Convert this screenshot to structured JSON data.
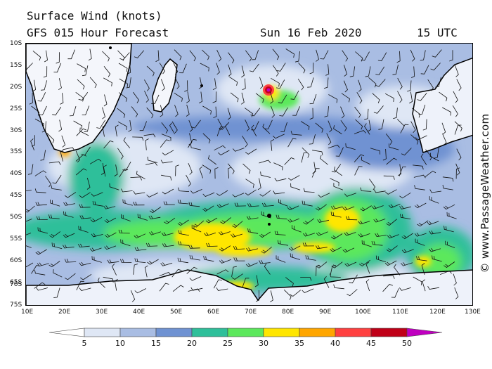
{
  "header": {
    "title": "Surface Wind (knots)",
    "forecast": "GFS 015 Hour Forecast",
    "date": "Sun 16 Feb 2020",
    "time": "15 UTC"
  },
  "map": {
    "lat_labels": [
      "10S",
      "15S",
      "20S",
      "25S",
      "30S",
      "35S",
      "40S",
      "45S",
      "50S",
      "55S",
      "60S",
      "65S",
      "70S",
      "75S"
    ],
    "lon_labels": [
      "10E",
      "20E",
      "30E",
      "40E",
      "50E",
      "60E",
      "70E",
      "80E",
      "90E",
      "100E",
      "110E",
      "120E",
      "130E"
    ],
    "land_color": "#ffffff",
    "coast_color": "#000000"
  },
  "legend": {
    "tick_labels": [
      "5",
      "10",
      "15",
      "20",
      "25",
      "30",
      "35",
      "40",
      "45",
      "50"
    ],
    "colors": [
      "#ffffff",
      "#dfe7f5",
      "#a9bde3",
      "#6f92d2",
      "#2fbf9a",
      "#5ce85c",
      "#ffe600",
      "#ffa600",
      "#ff4040",
      "#c00018",
      "#c000c0"
    ]
  },
  "copyright": "© www.PassageWeather.com"
}
